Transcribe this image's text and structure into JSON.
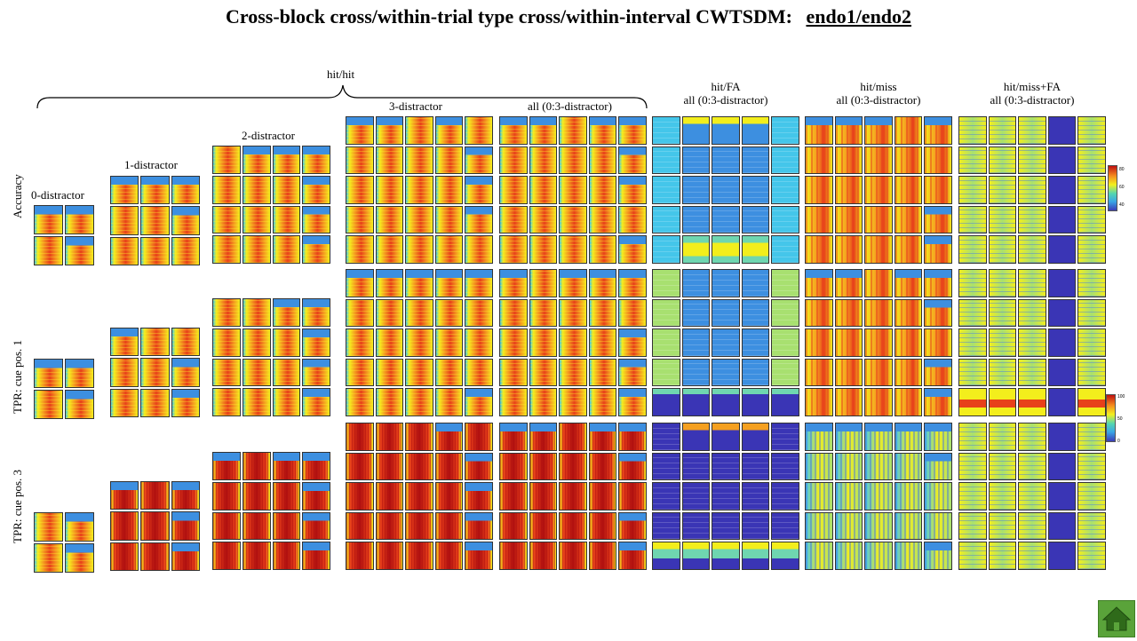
{
  "title": {
    "text": "Cross-block cross/within-trial type cross/within-interval CWTSDM:",
    "link": "endo1/endo2"
  },
  "group_label": "hit/hit",
  "columns": [
    {
      "id": "d0",
      "lines": [
        "0-distractor"
      ]
    },
    {
      "id": "d1",
      "lines": [
        "1-distractor"
      ]
    },
    {
      "id": "d2",
      "lines": [
        "2-distractor"
      ]
    },
    {
      "id": "d3",
      "lines": [
        "3-distractor"
      ]
    },
    {
      "id": "all",
      "lines": [
        "all (0:3-distractor)"
      ]
    },
    {
      "id": "fa",
      "lines": [
        "hit/FA",
        "all (0:3-distractor)"
      ]
    },
    {
      "id": "miss",
      "lines": [
        "hit/miss",
        "all (0:3-distractor)"
      ]
    },
    {
      "id": "missfa",
      "lines": [
        "hit/miss+FA",
        "all (0:3-distractor)"
      ]
    }
  ],
  "rows": [
    {
      "id": "acc",
      "label": "Accuracy"
    },
    {
      "id": "tpr1",
      "label": "TPR: cue pos. 1"
    },
    {
      "id": "tpr3",
      "label": "TPR: cue pos. 3"
    }
  ],
  "colorbars": [
    {
      "id": "accuracy",
      "ticks": [
        "80",
        "60",
        "40"
      ]
    },
    {
      "id": "tpr",
      "ticks": [
        "100",
        "50",
        "0"
      ]
    }
  ],
  "palette": {
    "darkblue": "#3a35b5",
    "blue": "#3d8fe0",
    "cyan": "#44c6ea",
    "teal": "#6fd6b0",
    "green": "#a8e070",
    "yellow": "#f3ee1c",
    "orange": "#f5a020",
    "red": "#e8401a",
    "darkred": "#b01010"
  },
  "home": {
    "icon": "home-icon"
  }
}
